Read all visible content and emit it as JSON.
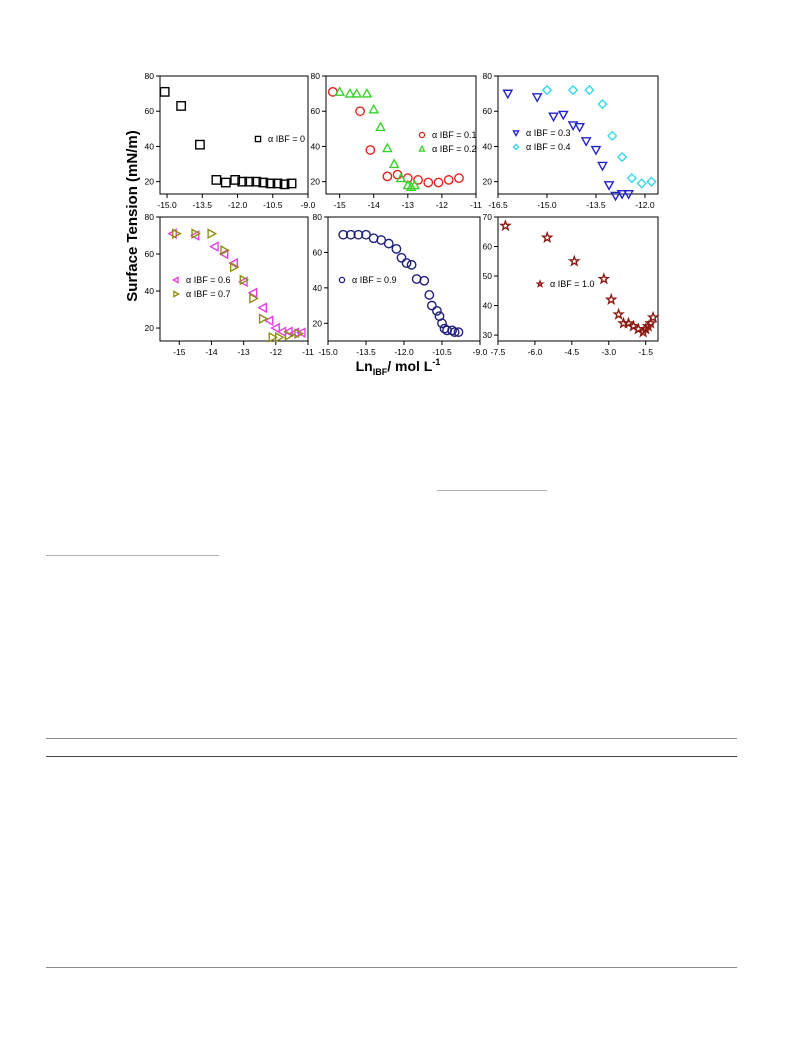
{
  "figure": {
    "ylabel": "Surface Tension (mN/m)",
    "xlabel": "Ln",
    "xlabel_sub": "IBF",
    "xlabel_tail": "/ mol L",
    "xlabel_sup": "-1"
  },
  "colors": {
    "black": "#000000",
    "red": "#e2231a",
    "green": "#39d12b",
    "blue": "#2222cc",
    "cyan": "#35d8e6",
    "magenta": "#e53ee0",
    "olive": "#8e8e10",
    "navy": "#1f1f7a",
    "maroon": "#8a1a12"
  },
  "chart_data": [
    {
      "type": "scatter",
      "xlim": [
        -15.3,
        -9.0
      ],
      "ylim": [
        13,
        80
      ],
      "xticks": [
        -15.0,
        -13.5,
        -12.0,
        -10.5,
        -9.0
      ],
      "xtick_labels": [
        "-15.0",
        "-13.5",
        "-12.0",
        "-10.5",
        "-9.0"
      ],
      "yticks": [
        20,
        40,
        60,
        80
      ],
      "ytick_labels": [
        "20",
        "40",
        "60",
        "80"
      ],
      "legend_position": "right",
      "series": [
        {
          "name": "α IBF = 0",
          "marker": "square",
          "color": "#000000",
          "x": [
            -15.1,
            -14.4,
            -13.6,
            -12.9,
            -12.5,
            -12.1,
            -11.8,
            -11.5,
            -11.2,
            -10.9,
            -10.6,
            -10.3,
            -10.0,
            -9.7
          ],
          "y": [
            71,
            63,
            41,
            21,
            19.5,
            21,
            20,
            20,
            20,
            19.5,
            19,
            19,
            18.5,
            19
          ]
        }
      ]
    },
    {
      "type": "scatter",
      "xlim": [
        -15.4,
        -11.0
      ],
      "ylim": [
        13,
        80
      ],
      "xticks": [
        -15,
        -14,
        -13,
        -12,
        -11
      ],
      "xtick_labels": [
        "-15",
        "-14",
        "-13",
        "-12",
        "-11"
      ],
      "yticks": [
        20,
        40,
        60,
        80
      ],
      "ytick_labels": [
        "20",
        "40",
        "60",
        "80"
      ],
      "legend_position": "right",
      "series": [
        {
          "name": "α IBF = 0.1",
          "marker": "circle",
          "color": "#e2231a",
          "x": [
            -15.2,
            -14.4,
            -14.1,
            -13.6,
            -13.3,
            -13.0,
            -12.7,
            -12.4,
            -12.1,
            -11.8,
            -11.5
          ],
          "y": [
            71,
            60,
            38,
            23,
            24,
            22,
            21,
            19.5,
            19.5,
            21,
            22
          ]
        },
        {
          "name": "α IBF = 0.2",
          "marker": "triangle-up",
          "color": "#39d12b",
          "x": [
            -15.0,
            -14.7,
            -14.5,
            -14.2,
            -14.0,
            -13.8,
            -13.6,
            -13.4,
            -13.2,
            -13.0,
            -12.9,
            -12.8
          ],
          "y": [
            71,
            70,
            70,
            70,
            61,
            51,
            39,
            30,
            22,
            18,
            17,
            18
          ]
        }
      ]
    },
    {
      "type": "scatter",
      "xlim": [
        -16.5,
        -11.6
      ],
      "ylim": [
        13,
        80
      ],
      "xticks": [
        -16.5,
        -15.0,
        -13.5,
        -12.0
      ],
      "xtick_labels": [
        "-16.5",
        "-15.0",
        "-13.5",
        "-12.0"
      ],
      "yticks": [
        20,
        40,
        60,
        80
      ],
      "ytick_labels": [
        "20",
        "40",
        "60",
        "80"
      ],
      "legend_position": "left",
      "series": [
        {
          "name": "α IBF = 0.3",
          "marker": "triangle-down",
          "color": "#2222cc",
          "x": [
            -16.2,
            -15.3,
            -14.8,
            -14.5,
            -14.2,
            -14.0,
            -13.8,
            -13.5,
            -13.3,
            -13.1,
            -12.9,
            -12.7,
            -12.5
          ],
          "y": [
            70,
            68,
            57,
            58,
            52,
            51,
            43,
            38,
            29,
            18,
            12,
            13,
            13
          ]
        },
        {
          "name": "α IBF = 0.4",
          "marker": "diamond",
          "color": "#35d8e6",
          "x": [
            -15.0,
            -14.2,
            -13.7,
            -13.3,
            -13.0,
            -12.7,
            -12.4,
            -12.1,
            -11.8
          ],
          "y": [
            72,
            72,
            72,
            64,
            46,
            34,
            22,
            19,
            20
          ]
        }
      ]
    },
    {
      "type": "scatter",
      "xlim": [
        -15.6,
        -11.0
      ],
      "ylim": [
        13,
        80
      ],
      "xticks": [
        -15,
        -14,
        -13,
        -12,
        -11
      ],
      "xtick_labels": [
        "-15",
        "-14",
        "-13",
        "-12",
        "-11"
      ],
      "yticks": [
        20,
        40,
        60,
        80
      ],
      "ytick_labels": [
        "20",
        "40",
        "60",
        "80"
      ],
      "legend_position": "left",
      "series": [
        {
          "name": "α IBF = 0.6",
          "marker": "triangle-left",
          "color": "#e53ee0",
          "x": [
            -15.2,
            -14.5,
            -13.9,
            -13.6,
            -13.3,
            -13.0,
            -12.7,
            -12.4,
            -12.2,
            -12.0,
            -11.8,
            -11.6,
            -11.4,
            -11.2
          ],
          "y": [
            71,
            70,
            64,
            60,
            55,
            45,
            39,
            31,
            24,
            20,
            18,
            18,
            17.5,
            17.5
          ]
        },
        {
          "name": "α IBF = 0.7",
          "marker": "triangle-right",
          "color": "#8e8e10",
          "x": [
            -15.1,
            -14.5,
            -14.0,
            -13.6,
            -13.3,
            -13.0,
            -12.7,
            -12.4,
            -12.1,
            -11.9,
            -11.6,
            -11.3
          ],
          "y": [
            71,
            71,
            71,
            62,
            53,
            46,
            36,
            25,
            15,
            15,
            16,
            17
          ]
        }
      ]
    },
    {
      "type": "scatter",
      "xlim": [
        -15.0,
        -9.0
      ],
      "ylim": [
        10,
        80
      ],
      "xticks": [
        -15.0,
        -13.5,
        -12.0,
        -10.5,
        -9.0
      ],
      "xtick_labels": [
        "-15.0",
        "-13.5",
        "-12.0",
        "-10.5",
        "-9.0"
      ],
      "yticks": [
        20,
        40,
        60,
        80
      ],
      "ytick_labels": [
        "20",
        "40",
        "60",
        "80"
      ],
      "legend_position": "left",
      "series": [
        {
          "name": "α IBF = 0.9",
          "marker": "circle",
          "color": "#1f1f7a",
          "x": [
            -14.4,
            -14.1,
            -13.8,
            -13.5,
            -13.2,
            -12.9,
            -12.6,
            -12.3,
            -12.1,
            -11.9,
            -11.7,
            -11.5,
            -11.2,
            -11.0,
            -10.9,
            -10.7,
            -10.6,
            -10.5,
            -10.4,
            -10.3,
            -10.1,
            -10.0,
            -9.85
          ],
          "y": [
            70,
            70,
            70,
            70,
            68,
            67,
            65,
            62,
            57,
            54,
            53,
            45,
            44,
            36,
            30,
            27,
            24,
            20,
            17,
            16,
            16,
            15,
            15
          ]
        }
      ]
    },
    {
      "type": "scatter",
      "xlim": [
        -7.5,
        -1.0
      ],
      "ylim": [
        28,
        70
      ],
      "xticks": [
        -7.5,
        -6.0,
        -4.5,
        -3.0,
        -1.5
      ],
      "xtick_labels": [
        "-7.5",
        "-6.0",
        "-4.5",
        "-3.0",
        "-1.5"
      ],
      "yticks": [
        30,
        40,
        50,
        60,
        70
      ],
      "ytick_labels": [
        "30",
        "40",
        "50",
        "60",
        "70"
      ],
      "legend_position": "left",
      "series": [
        {
          "name": "α IBF = 1.0",
          "marker": "star",
          "color": "#8a1a12",
          "x": [
            -7.2,
            -5.5,
            -4.4,
            -3.2,
            -2.9,
            -2.6,
            -2.4,
            -2.2,
            -2.0,
            -1.8,
            -1.6,
            -1.5,
            -1.4,
            -1.3,
            -1.2
          ],
          "y": [
            67,
            63,
            55,
            49,
            42,
            37,
            34,
            34,
            33,
            32,
            31,
            32,
            33,
            34,
            36
          ]
        }
      ]
    }
  ]
}
